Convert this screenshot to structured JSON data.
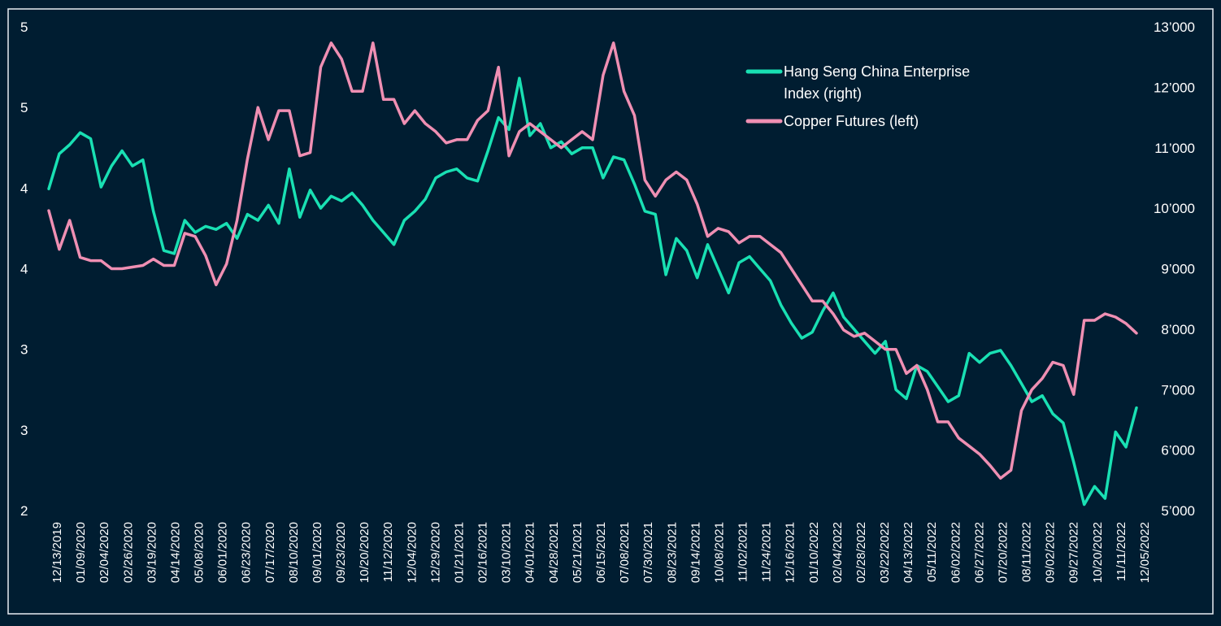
{
  "chart_data": {
    "type": "line",
    "title": "",
    "xlabel": "",
    "ylabel_left": "",
    "ylabel_right": "",
    "colors": {
      "background": "#001d31",
      "hscei": "#19e0b3",
      "copper": "#ef8fb3",
      "frame": "#e8edf2"
    },
    "y_left": {
      "ylim": [
        2.0,
        5.0
      ],
      "ticks": [
        2.0,
        2.5,
        3.0,
        3.5,
        4.0,
        4.5,
        5.0
      ],
      "tick_labels": [
        "2",
        "3",
        "3",
        "4",
        "4",
        "5",
        "5"
      ]
    },
    "y_right": {
      "ylim": [
        5000,
        13000
      ],
      "ticks": [
        5000,
        6000,
        7000,
        8000,
        9000,
        10000,
        11000,
        12000,
        13000
      ],
      "tick_labels": [
        "5’000",
        "6’000",
        "7’000",
        "8’000",
        "9’000",
        "10’000",
        "11’000",
        "12’000",
        "13’000"
      ]
    },
    "x_tick_labels": [
      "12/13/2019",
      "01/09/2020",
      "02/04/2020",
      "02/26/2020",
      "03/19/2020",
      "04/14/2020",
      "05/08/2020",
      "06/01/2020",
      "06/23/2020",
      "07/17/2020",
      "08/10/2020",
      "09/01/2020",
      "09/23/2020",
      "10/20/2020",
      "11/12/2020",
      "12/04/2020",
      "12/29/2020",
      "01/21/2021",
      "02/16/2021",
      "03/10/2021",
      "04/01/2021",
      "04/28/2021",
      "05/21/2021",
      "06/15/2021",
      "07/08/2021",
      "07/30/2021",
      "08/23/2021",
      "09/14/2021",
      "10/08/2021",
      "11/02/2021",
      "11/24/2021",
      "12/16/2021",
      "01/10/2022",
      "02/04/2022",
      "02/28/2022",
      "03/22/2022",
      "04/13/2022",
      "05/11/2022",
      "06/02/2022",
      "06/27/2022",
      "07/20/2022",
      "08/11/2022",
      "09/02/2022",
      "09/27/2022",
      "10/20/2022",
      "11/11/2022",
      "12/05/2022"
    ],
    "legend": {
      "position": "top-right",
      "entries": [
        "Hang Seng China Enterprise Index (right)",
        "Copper Futures (left)"
      ]
    },
    "legend_lines": [
      [
        "Hang Seng China Enterprise",
        "Index (right)"
      ],
      [
        "Copper Futures (left)"
      ]
    ],
    "series": [
      {
        "name": "Hang Seng China Enterprise Index (right)",
        "axis": "right",
        "color": "#19e0b3",
        "values": [
          10320,
          10900,
          11050,
          11250,
          11150,
          10350,
          10700,
          10950,
          10700,
          10800,
          9950,
          9300,
          9250,
          9800,
          9600,
          9700,
          9650,
          9750,
          9500,
          9900,
          9800,
          10050,
          9750,
          10650,
          9850,
          10300,
          10000,
          10200,
          10120,
          10250,
          10050,
          9800,
          9600,
          9400,
          9800,
          9950,
          10150,
          10500,
          10600,
          10650,
          10500,
          10450,
          10950,
          11500,
          11300,
          12150,
          11200,
          11400,
          11000,
          11100,
          10900,
          11000,
          11000,
          10500,
          10850,
          10800,
          10400,
          9950,
          9900,
          8900,
          9500,
          9300,
          8850,
          9400,
          9000,
          8600,
          9100,
          9200,
          9000,
          8800,
          8400,
          8100,
          7850,
          7950,
          8300,
          8600,
          8200,
          8000,
          7800,
          7600,
          7800,
          7000,
          6850,
          7400,
          7300,
          7050,
          6800,
          6900,
          7600,
          7450,
          7600,
          7650,
          7400,
          7100,
          6800,
          6900,
          6600,
          6450,
          5800,
          5100,
          5400,
          5200,
          6300,
          6050,
          6700
        ]
      },
      {
        "name": "Copper Futures (left)",
        "axis": "left",
        "color": "#ef8fb3",
        "values": [
          3.86,
          3.62,
          3.8,
          3.57,
          3.55,
          3.55,
          3.5,
          3.5,
          3.51,
          3.52,
          3.56,
          3.52,
          3.52,
          3.72,
          3.7,
          3.58,
          3.4,
          3.53,
          3.8,
          4.18,
          4.5,
          4.3,
          4.48,
          4.48,
          4.2,
          4.22,
          4.75,
          4.9,
          4.8,
          4.6,
          4.6,
          4.9,
          4.55,
          4.55,
          4.4,
          4.48,
          4.4,
          4.35,
          4.28,
          4.3,
          4.3,
          4.42,
          4.48,
          4.75,
          4.2,
          4.35,
          4.4,
          4.35,
          4.3,
          4.25,
          4.3,
          4.35,
          4.3,
          4.7,
          4.9,
          4.6,
          4.45,
          4.05,
          3.95,
          4.05,
          4.1,
          4.05,
          3.9,
          3.7,
          3.75,
          3.73,
          3.66,
          3.7,
          3.7,
          3.65,
          3.6,
          3.5,
          3.4,
          3.3,
          3.3,
          3.22,
          3.12,
          3.08,
          3.1,
          3.05,
          3.0,
          3.0,
          2.85,
          2.9,
          2.75,
          2.55,
          2.55,
          2.45,
          2.4,
          2.35,
          2.28,
          2.2,
          2.25,
          2.62,
          2.75,
          2.82,
          2.92,
          2.9,
          2.72,
          3.18,
          3.18,
          3.22,
          3.2,
          3.16,
          3.1
        ]
      }
    ]
  }
}
